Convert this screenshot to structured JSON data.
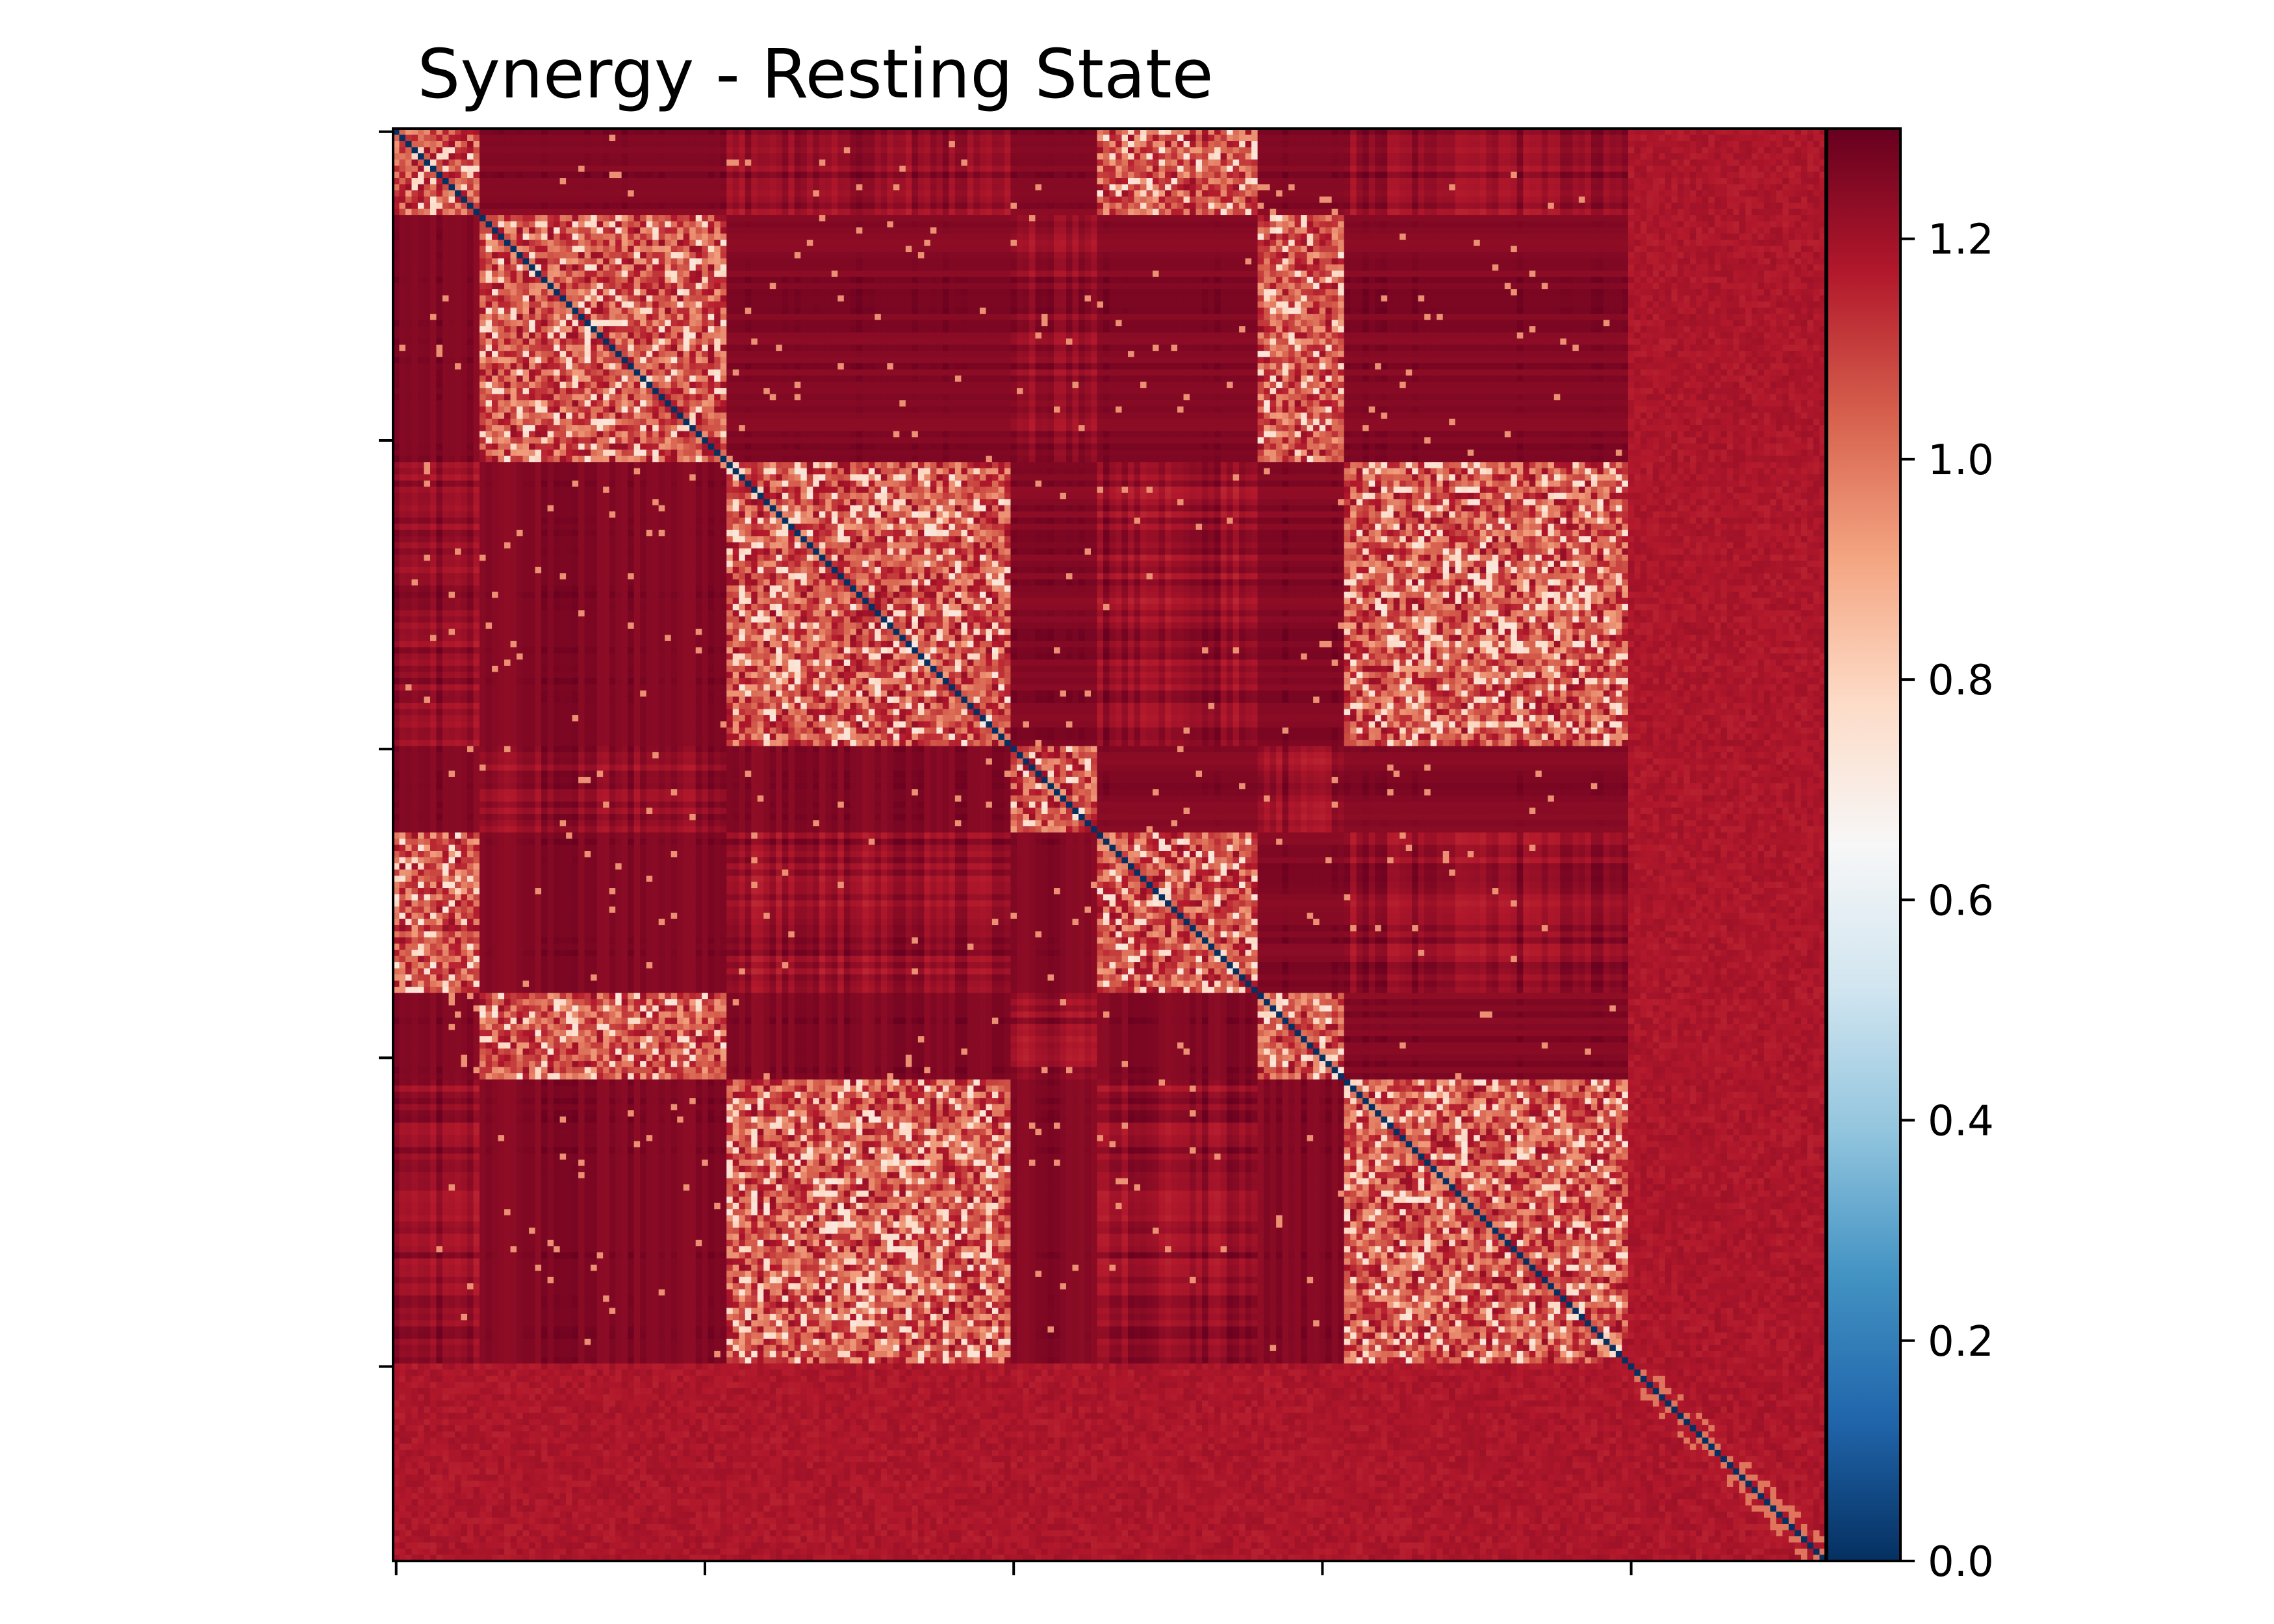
{
  "chart_data": {
    "type": "heatmap",
    "title": "Synergy - Resting State",
    "xlabel": "",
    "ylabel": "",
    "matrix_size": 232,
    "x_ticks": [
      "",
      "",
      "",
      "",
      ""
    ],
    "y_ticks": [
      "",
      "",
      "",
      "",
      ""
    ],
    "diagonal_value": 0.0,
    "typical_off_diagonal_value": 1.2,
    "value_range": [
      0.0,
      1.3
    ],
    "colormap": "RdBu_r",
    "colorbar": {
      "ticks": [
        0.0,
        0.2,
        0.4,
        0.6,
        0.8,
        1.0,
        1.2
      ],
      "tick_labels": [
        "0.0",
        "0.2",
        "0.4",
        "0.6",
        "0.8",
        "1.0",
        "1.2"
      ],
      "vmin": 0.0,
      "vmax": 1.3,
      "placement": "right"
    },
    "block_structure": {
      "module_boundaries": [
        0,
        14,
        54,
        100,
        114,
        140,
        154,
        200,
        232
      ],
      "description_values": {
        "within_module_min": 0.72,
        "background": 1.22,
        "high_band": 1.27,
        "lower_region_value": 1.18
      }
    },
    "colors": {
      "dark_red": "#67001f",
      "red": "#b2182b",
      "light_red": "#d6604d",
      "salmon": "#f4a582",
      "pale": "#fddbc7",
      "white": "#f7f7f7",
      "pale_blue": "#d1e5f0",
      "light_blue": "#92c5de",
      "blue": "#4393c3",
      "mid_blue": "#2166ac",
      "dark_blue": "#053061"
    }
  }
}
